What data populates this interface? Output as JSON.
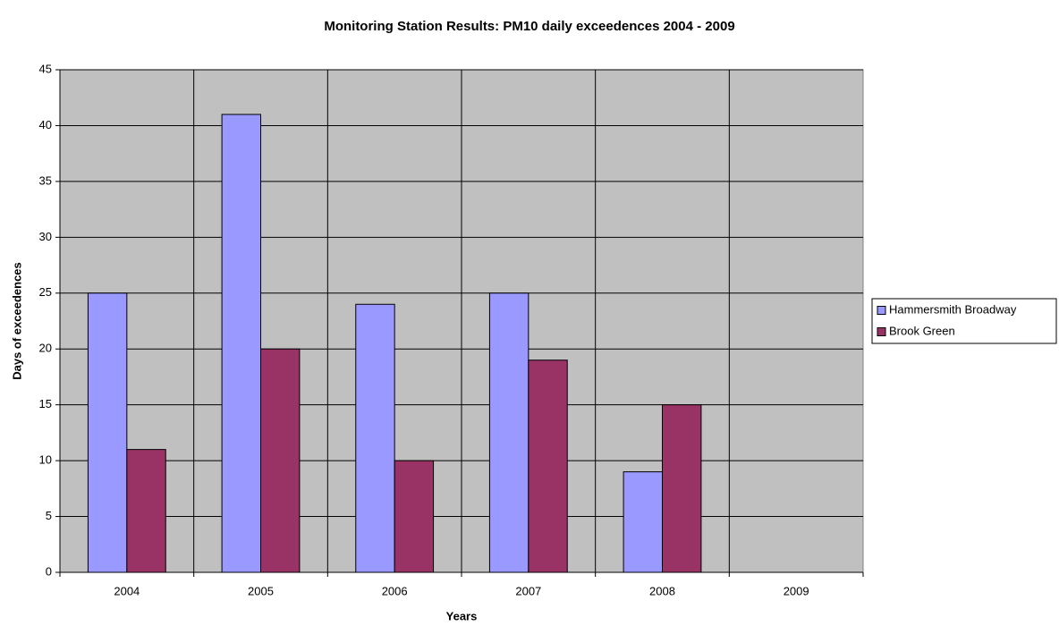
{
  "chart_data": {
    "type": "bar",
    "title": "Monitoring Station Results: PM10 daily exceedences 2004 - 2009",
    "x_label": "Years",
    "y_label": "Days of exceedences",
    "categories": [
      "2004",
      "2005",
      "2006",
      "2007",
      "2008",
      "2009"
    ],
    "series": [
      {
        "name": "Hammersmith Broadway",
        "color": "#9999ff",
        "values": [
          25,
          41,
          24,
          25,
          9,
          null
        ]
      },
      {
        "name": "Brook Green",
        "color": "#993366",
        "values": [
          11,
          20,
          10,
          19,
          15,
          null
        ]
      }
    ],
    "ylim": [
      0,
      45
    ],
    "yticks": [
      0,
      5,
      10,
      15,
      20,
      25,
      30,
      35,
      40,
      45
    ],
    "grid": true,
    "legend": "right",
    "plot_background": "#c0c0c0"
  }
}
